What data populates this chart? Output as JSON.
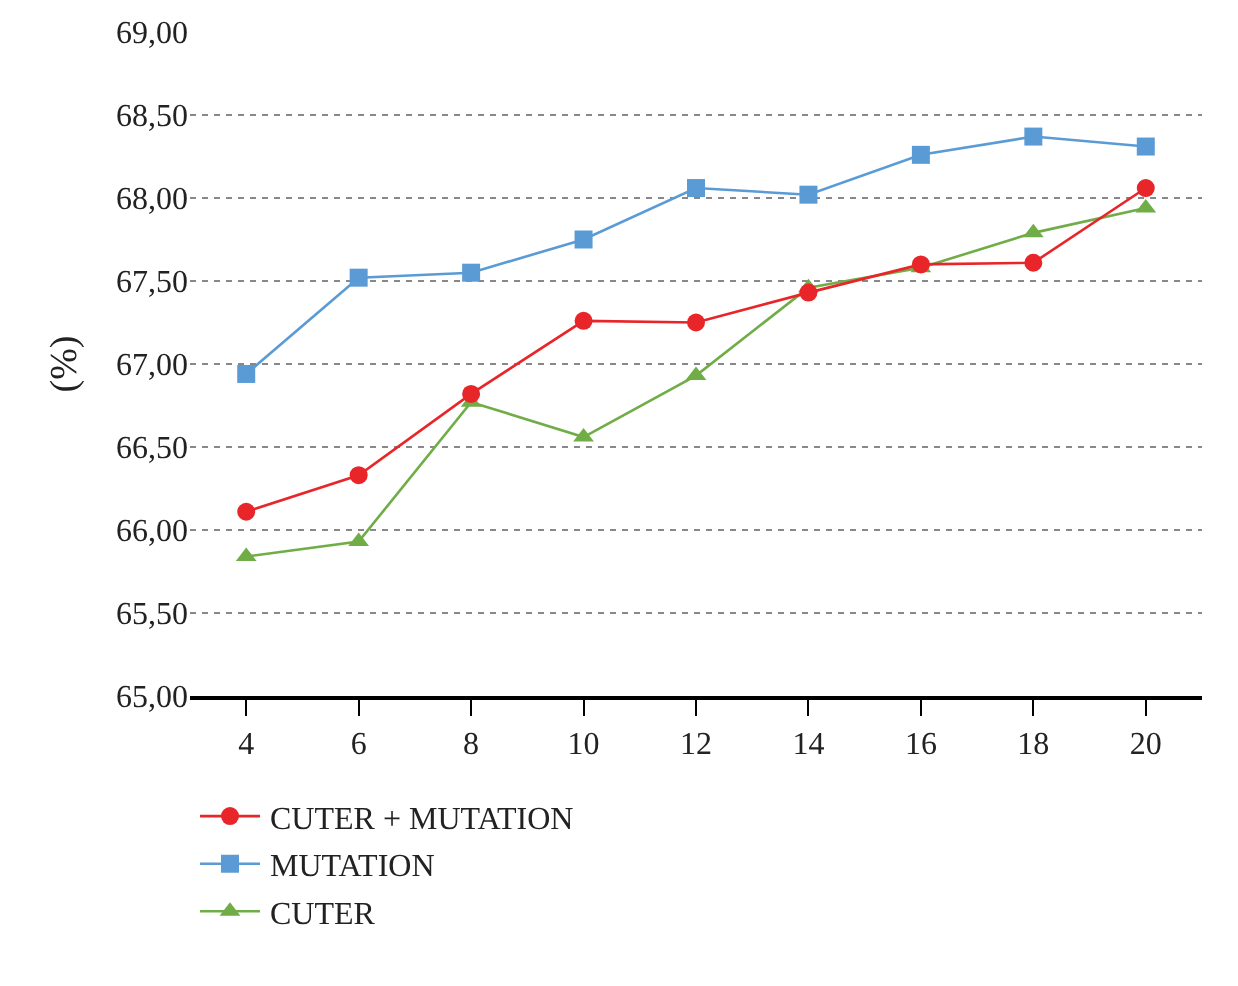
{
  "chart_data": {
    "type": "line",
    "ylabel": "(%)",
    "x": [
      4,
      6,
      8,
      10,
      12,
      14,
      16,
      18,
      20
    ],
    "xlim": [
      3,
      21
    ],
    "xticks": [
      4,
      6,
      8,
      10,
      12,
      14,
      16,
      18,
      20
    ],
    "ylim": [
      65,
      69
    ],
    "yticks": [
      {
        "value": 65,
        "label": "65,00"
      },
      {
        "value": 65.5,
        "label": "65,50"
      },
      {
        "value": 66,
        "label": "66,00"
      },
      {
        "value": 66.5,
        "label": "66,50"
      },
      {
        "value": 67,
        "label": "67,00"
      },
      {
        "value": 67.5,
        "label": "67,50"
      },
      {
        "value": 68,
        "label": "68,00"
      },
      {
        "value": 68.5,
        "label": "68,50"
      },
      {
        "value": 69,
        "label": "69,00"
      }
    ],
    "grid": "y",
    "legend": "bottom left",
    "series": [
      {
        "name": "CUTER + MUTATION",
        "color": "#e8262a",
        "marker": "circle",
        "values": [
          66.11,
          66.33,
          66.82,
          67.26,
          67.25,
          67.43,
          67.6,
          67.61,
          68.06
        ]
      },
      {
        "name": "MUTATION",
        "color": "#5b9bd5",
        "marker": "square",
        "values": [
          66.94,
          67.52,
          67.55,
          67.75,
          68.06,
          68.02,
          68.26,
          68.37,
          68.31
        ]
      },
      {
        "name": "CUTER",
        "color": "#70ad47",
        "marker": "triangle",
        "values": [
          65.84,
          65.93,
          66.77,
          66.56,
          66.93,
          67.46,
          67.58,
          67.79,
          67.94
        ]
      }
    ]
  }
}
